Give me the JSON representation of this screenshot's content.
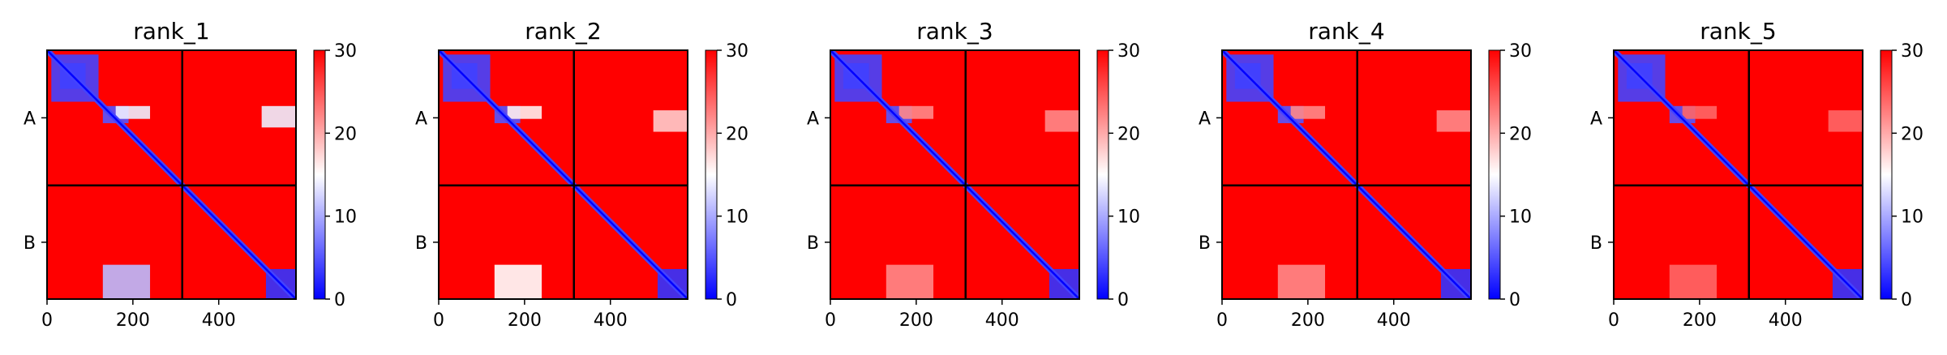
{
  "chart_data": [
    {
      "type": "heatmap",
      "title": "rank_1",
      "xticks": [
        "0",
        "200",
        "400"
      ],
      "xtick_values": [
        0,
        200,
        400
      ],
      "xlim": [
        0,
        580
      ],
      "chain_labels": [
        "A",
        "B"
      ],
      "chain_boundary": 315,
      "colorbar": {
        "ticks": [
          "0",
          "10",
          "20",
          "30"
        ],
        "min": 0,
        "max": 30,
        "low_color": "#0000ff",
        "mid_color": "#ffffff",
        "high_color": "#ff0000"
      },
      "low_error_regions": [
        {
          "x": [
            30,
            90
          ],
          "y": [
            30,
            90
          ],
          "value": 2
        },
        {
          "x": [
            10,
            120
          ],
          "y": [
            10,
            120
          ],
          "value": 4
        },
        {
          "x": [
            130,
            190
          ],
          "y": [
            130,
            170
          ],
          "value": 5
        },
        {
          "x": [
            160,
            240
          ],
          "y": [
            130,
            160
          ],
          "value": 14
        },
        {
          "x": [
            500,
            580
          ],
          "y": [
            130,
            180
          ],
          "value": 14
        },
        {
          "x": [
            130,
            240
          ],
          "y": [
            500,
            580
          ],
          "value": 11
        },
        {
          "x": [
            510,
            580
          ],
          "y": [
            510,
            580
          ],
          "value": 3
        }
      ]
    },
    {
      "type": "heatmap",
      "title": "rank_2",
      "xticks": [
        "0",
        "200",
        "400"
      ],
      "xtick_values": [
        0,
        200,
        400
      ],
      "xlim": [
        0,
        580
      ],
      "chain_labels": [
        "A",
        "B"
      ],
      "chain_boundary": 315,
      "colorbar": {
        "ticks": [
          "0",
          "10",
          "20",
          "30"
        ],
        "min": 0,
        "max": 30,
        "low_color": "#0000ff",
        "mid_color": "#ffffff",
        "high_color": "#ff0000"
      },
      "low_error_regions": [
        {
          "x": [
            30,
            90
          ],
          "y": [
            30,
            90
          ],
          "value": 2
        },
        {
          "x": [
            10,
            120
          ],
          "y": [
            10,
            120
          ],
          "value": 4
        },
        {
          "x": [
            130,
            190
          ],
          "y": [
            130,
            170
          ],
          "value": 5
        },
        {
          "x": [
            160,
            240
          ],
          "y": [
            130,
            160
          ],
          "value": 16
        },
        {
          "x": [
            500,
            580
          ],
          "y": [
            140,
            190
          ],
          "value": 18
        },
        {
          "x": [
            130,
            240
          ],
          "y": [
            500,
            580
          ],
          "value": 15
        },
        {
          "x": [
            510,
            580
          ],
          "y": [
            510,
            580
          ],
          "value": 3
        }
      ]
    },
    {
      "type": "heatmap",
      "title": "rank_3",
      "xticks": [
        "0",
        "200",
        "400"
      ],
      "xtick_values": [
        0,
        200,
        400
      ],
      "xlim": [
        0,
        580
      ],
      "chain_labels": [
        "A",
        "B"
      ],
      "chain_boundary": 315,
      "colorbar": {
        "ticks": [
          "0",
          "10",
          "20",
          "30"
        ],
        "min": 0,
        "max": 30,
        "low_color": "#0000ff",
        "mid_color": "#ffffff",
        "high_color": "#ff0000"
      },
      "low_error_regions": [
        {
          "x": [
            30,
            90
          ],
          "y": [
            30,
            90
          ],
          "value": 2
        },
        {
          "x": [
            10,
            120
          ],
          "y": [
            10,
            120
          ],
          "value": 4
        },
        {
          "x": [
            130,
            190
          ],
          "y": [
            130,
            170
          ],
          "value": 5
        },
        {
          "x": [
            160,
            240
          ],
          "y": [
            130,
            160
          ],
          "value": 22
        },
        {
          "x": [
            500,
            580
          ],
          "y": [
            140,
            190
          ],
          "value": 22
        },
        {
          "x": [
            130,
            240
          ],
          "y": [
            500,
            580
          ],
          "value": 22
        },
        {
          "x": [
            510,
            580
          ],
          "y": [
            510,
            580
          ],
          "value": 3
        }
      ]
    },
    {
      "type": "heatmap",
      "title": "rank_4",
      "xticks": [
        "0",
        "200",
        "400"
      ],
      "xtick_values": [
        0,
        200,
        400
      ],
      "xlim": [
        0,
        580
      ],
      "chain_labels": [
        "A",
        "B"
      ],
      "chain_boundary": 315,
      "colorbar": {
        "ticks": [
          "0",
          "10",
          "20",
          "30"
        ],
        "min": 0,
        "max": 30,
        "low_color": "#0000ff",
        "mid_color": "#ffffff",
        "high_color": "#ff0000"
      },
      "low_error_regions": [
        {
          "x": [
            30,
            90
          ],
          "y": [
            30,
            90
          ],
          "value": 2
        },
        {
          "x": [
            10,
            120
          ],
          "y": [
            10,
            120
          ],
          "value": 4
        },
        {
          "x": [
            130,
            190
          ],
          "y": [
            130,
            170
          ],
          "value": 5
        },
        {
          "x": [
            160,
            240
          ],
          "y": [
            130,
            160
          ],
          "value": 22
        },
        {
          "x": [
            500,
            580
          ],
          "y": [
            140,
            190
          ],
          "value": 22
        },
        {
          "x": [
            130,
            240
          ],
          "y": [
            500,
            580
          ],
          "value": 22
        },
        {
          "x": [
            510,
            580
          ],
          "y": [
            510,
            580
          ],
          "value": 3
        }
      ]
    },
    {
      "type": "heatmap",
      "title": "rank_5",
      "xticks": [
        "0",
        "200",
        "400"
      ],
      "xtick_values": [
        0,
        200,
        400
      ],
      "xlim": [
        0,
        580
      ],
      "chain_labels": [
        "A",
        "B"
      ],
      "chain_boundary": 315,
      "colorbar": {
        "ticks": [
          "0",
          "10",
          "20",
          "30"
        ],
        "min": 0,
        "max": 30,
        "low_color": "#0000ff",
        "mid_color": "#ffffff",
        "high_color": "#ff0000"
      },
      "low_error_regions": [
        {
          "x": [
            30,
            90
          ],
          "y": [
            30,
            90
          ],
          "value": 2
        },
        {
          "x": [
            10,
            120
          ],
          "y": [
            10,
            120
          ],
          "value": 4
        },
        {
          "x": [
            130,
            190
          ],
          "y": [
            130,
            170
          ],
          "value": 5
        },
        {
          "x": [
            160,
            240
          ],
          "y": [
            130,
            160
          ],
          "value": 24
        },
        {
          "x": [
            500,
            580
          ],
          "y": [
            140,
            190
          ],
          "value": 24
        },
        {
          "x": [
            130,
            240
          ],
          "y": [
            500,
            580
          ],
          "value": 24
        },
        {
          "x": [
            510,
            580
          ],
          "y": [
            510,
            580
          ],
          "value": 3
        }
      ]
    }
  ]
}
